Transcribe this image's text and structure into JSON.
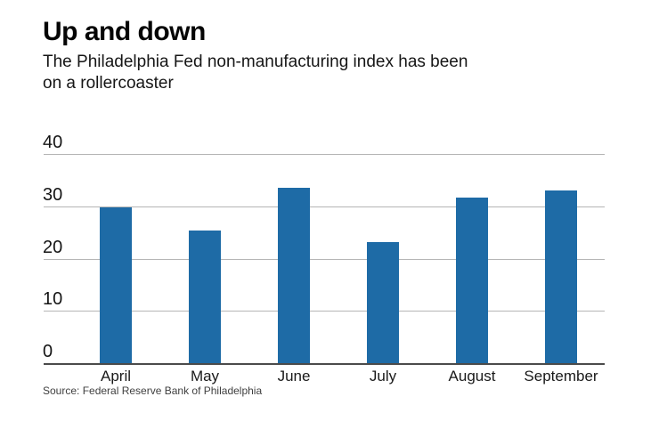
{
  "header": {
    "title": "Up and down",
    "subtitle_line1": "The Philadelphia Fed non-manufacturing index has been",
    "subtitle_line2": "on a rollercoaster"
  },
  "chart_data": {
    "type": "bar",
    "title": "Up and down",
    "subtitle": "The Philadelphia Fed non-manufacturing index has been on a rollercoaster",
    "categories": [
      "April",
      "May",
      "June",
      "July",
      "August",
      "September"
    ],
    "values": [
      29.9,
      25.5,
      33.7,
      23.4,
      31.9,
      33.2
    ],
    "xlabel": "",
    "ylabel": "",
    "ylim": [
      0,
      40
    ],
    "yticks": [
      40,
      30,
      20,
      10,
      0
    ],
    "grid": true,
    "legend": false,
    "bar_color": "#1e6ba6",
    "gridline_color": "#b5b5b5",
    "baseline_color": "#4b4b4b",
    "source": "Source: Federal Reserve Bank of Philadelphia"
  },
  "footer": {
    "source": "Source: Federal Reserve Bank of Philadelphia"
  }
}
